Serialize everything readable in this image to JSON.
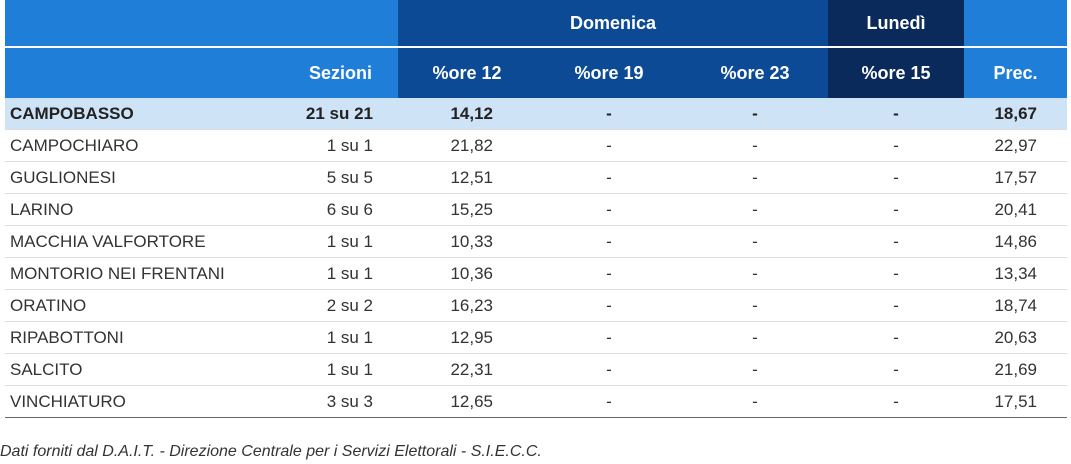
{
  "header": {
    "group_domenica": "Domenica",
    "group_lunedi": "Lunedì",
    "col_sezioni": "Sezioni",
    "col_ore12": "%ore 12",
    "col_ore19": "%ore 19",
    "col_ore23": "%ore 23",
    "col_ore15": "%ore 15",
    "col_prec": "Prec."
  },
  "colors": {
    "header_light": "#1f7fd8",
    "header_mid": "#0c4a96",
    "header_dark": "#092a5a",
    "highlight_row": "#cfe3f6"
  },
  "rows": [
    {
      "name": "CAMPOBASSO",
      "sezioni": "21 su 21",
      "ore12": "14,12",
      "ore19": "-",
      "ore23": "-",
      "ore15": "-",
      "prec": "18,67"
    },
    {
      "name": "CAMPOCHIARO",
      "sezioni": "1 su 1",
      "ore12": "21,82",
      "ore19": "-",
      "ore23": "-",
      "ore15": "-",
      "prec": "22,97"
    },
    {
      "name": "GUGLIONESI",
      "sezioni": "5 su 5",
      "ore12": "12,51",
      "ore19": "-",
      "ore23": "-",
      "ore15": "-",
      "prec": "17,57"
    },
    {
      "name": "LARINO",
      "sezioni": "6 su 6",
      "ore12": "15,25",
      "ore19": "-",
      "ore23": "-",
      "ore15": "-",
      "prec": "20,41"
    },
    {
      "name": "MACCHIA VALFORTORE",
      "sezioni": "1 su 1",
      "ore12": "10,33",
      "ore19": "-",
      "ore23": "-",
      "ore15": "-",
      "prec": "14,86"
    },
    {
      "name": "MONTORIO NEI FRENTANI",
      "sezioni": "1 su 1",
      "ore12": "10,36",
      "ore19": "-",
      "ore23": "-",
      "ore15": "-",
      "prec": "13,34"
    },
    {
      "name": "ORATINO",
      "sezioni": "2 su 2",
      "ore12": "16,23",
      "ore19": "-",
      "ore23": "-",
      "ore15": "-",
      "prec": "18,74"
    },
    {
      "name": "RIPABOTTONI",
      "sezioni": "1 su 1",
      "ore12": "12,95",
      "ore19": "-",
      "ore23": "-",
      "ore15": "-",
      "prec": "20,63"
    },
    {
      "name": "SALCITO",
      "sezioni": "1 su 1",
      "ore12": "22,31",
      "ore19": "-",
      "ore23": "-",
      "ore15": "-",
      "prec": "21,69"
    },
    {
      "name": "VINCHIATURO",
      "sezioni": "3 su 3",
      "ore12": "12,65",
      "ore19": "-",
      "ore23": "-",
      "ore15": "-",
      "prec": "17,51"
    }
  ],
  "footnote": "Dati forniti dal D.A.I.T. - Direzione Centrale per i Servizi Elettorali - S.I.E.C.C."
}
